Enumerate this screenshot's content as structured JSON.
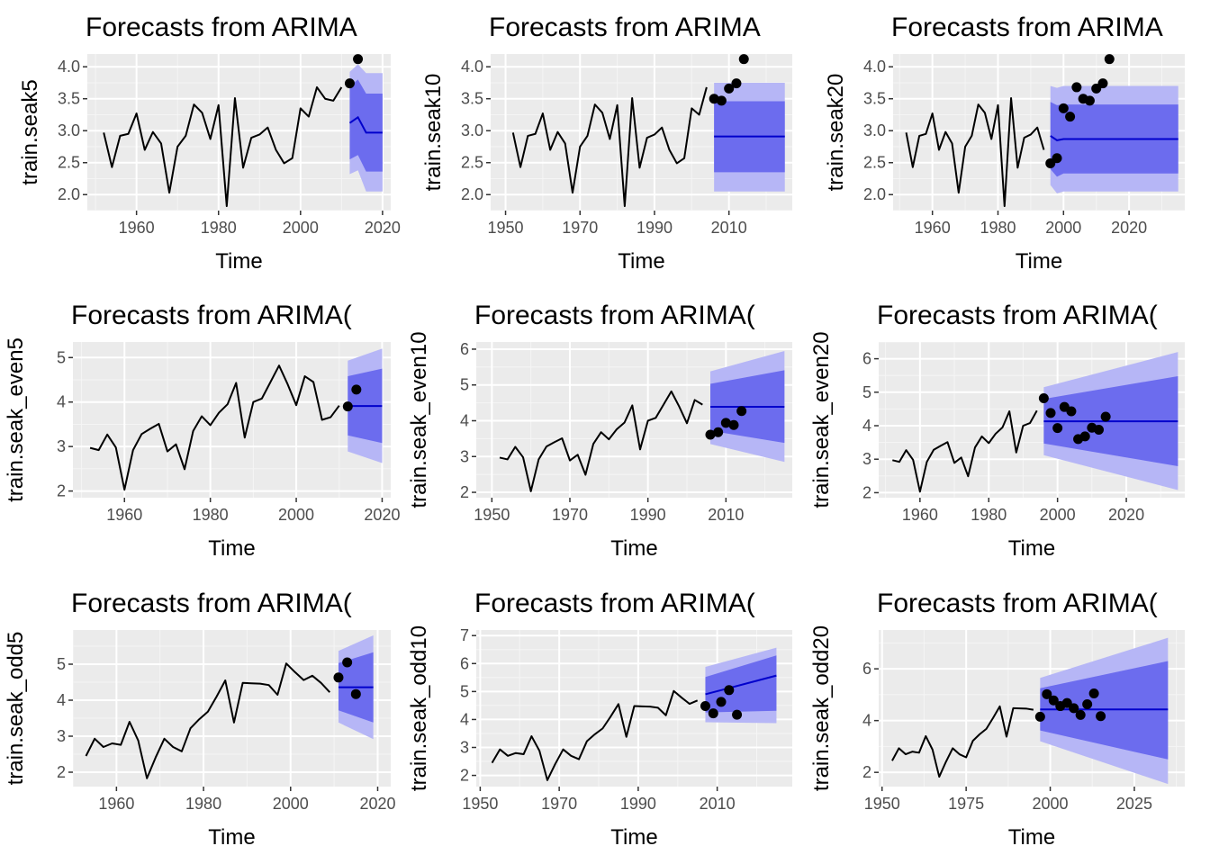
{
  "figure": {
    "panel_bg": "#ebebeb",
    "grid_major": "#ffffff",
    "grid_minor": "#f5f5f5",
    "band80": "#6c6cee",
    "band95": "#b6b6f6",
    "forecast_line": "#0000cc",
    "series_line": "#000000",
    "points": "#000000"
  },
  "chart_data": [
    {
      "type": "line",
      "title": "Forecasts from ARIMA",
      "xlabel": "Time",
      "ylabel": "train.seak5",
      "xlim": [
        1948,
        2022
      ],
      "ylim": [
        1.75,
        4.2
      ],
      "xticks": [
        1960,
        1980,
        2000,
        2020
      ],
      "yticks": [
        2.0,
        2.5,
        3.0,
        3.5,
        4.0
      ],
      "ytick_labels": [
        "2.0",
        "2.5",
        "3.0",
        "3.5",
        "4.0"
      ],
      "series": {
        "x": [
          1952,
          1954,
          1956,
          1958,
          1960,
          1962,
          1964,
          1966,
          1968,
          1970,
          1972,
          1974,
          1976,
          1978,
          1980,
          1982,
          1984,
          1986,
          1988,
          1990,
          1992,
          1994,
          1996,
          1998,
          2000,
          2002,
          2004,
          2006,
          2008,
          2010
        ],
        "y": [
          2.97,
          2.43,
          2.92,
          2.95,
          3.27,
          2.7,
          2.98,
          2.8,
          2.03,
          2.75,
          2.92,
          3.41,
          3.28,
          2.87,
          3.4,
          1.82,
          3.51,
          2.42,
          2.89,
          2.94,
          3.05,
          2.7,
          2.49,
          2.57,
          3.35,
          3.22,
          3.68,
          3.5,
          3.47,
          3.68
        ]
      },
      "forecast": {
        "x": [
          2012,
          2014,
          2016,
          2018,
          2020
        ],
        "mean": [
          3.12,
          3.21,
          2.97,
          2.97,
          2.97
        ],
        "lo80": [
          2.55,
          2.62,
          2.36,
          2.36,
          2.36
        ],
        "hi80": [
          3.69,
          3.8,
          3.58,
          3.58,
          3.58
        ],
        "lo95": [
          2.32,
          2.38,
          2.05,
          2.05,
          2.05
        ],
        "hi95": [
          3.92,
          4.04,
          3.9,
          3.9,
          3.9
        ]
      },
      "actual": {
        "x": [
          2012,
          2014
        ],
        "y": [
          3.74,
          4.12
        ]
      }
    },
    {
      "type": "line",
      "title": "Forecasts from ARIMA",
      "xlabel": "Time",
      "ylabel": "train.seak10",
      "xlim": [
        1946,
        2027
      ],
      "ylim": [
        1.75,
        4.2
      ],
      "xticks": [
        1950,
        1970,
        1990,
        2010
      ],
      "yticks": [
        2.0,
        2.5,
        3.0,
        3.5,
        4.0
      ],
      "ytick_labels": [
        "2.0",
        "2.5",
        "3.0",
        "3.5",
        "4.0"
      ],
      "series": {
        "x": [
          1952,
          1954,
          1956,
          1958,
          1960,
          1962,
          1964,
          1966,
          1968,
          1970,
          1972,
          1974,
          1976,
          1978,
          1980,
          1982,
          1984,
          1986,
          1988,
          1990,
          1992,
          1994,
          1996,
          1998,
          2000,
          2002,
          2004
        ],
        "y": [
          2.97,
          2.43,
          2.92,
          2.95,
          3.27,
          2.7,
          2.98,
          2.8,
          2.03,
          2.75,
          2.92,
          3.41,
          3.28,
          2.87,
          3.4,
          1.82,
          3.51,
          2.42,
          2.89,
          2.94,
          3.05,
          2.7,
          2.49,
          2.57,
          3.35,
          3.25,
          3.68
        ]
      },
      "forecast": {
        "x": [
          2006,
          2025
        ],
        "mean": [
          2.91,
          2.91
        ],
        "lo80": [
          2.35,
          2.35
        ],
        "hi80": [
          3.46,
          3.46
        ],
        "lo95": [
          2.05,
          2.05
        ],
        "hi95": [
          3.75,
          3.75
        ]
      },
      "actual": {
        "x": [
          2006,
          2008,
          2010,
          2012,
          2014
        ],
        "y": [
          3.5,
          3.47,
          3.66,
          3.74,
          4.12
        ]
      }
    },
    {
      "type": "line",
      "title": "Forecasts from ARIMA",
      "xlabel": "Time",
      "ylabel": "train.seak20",
      "xlim": [
        1948,
        2037
      ],
      "ylim": [
        1.75,
        4.2
      ],
      "xticks": [
        1960,
        1980,
        2000,
        2020
      ],
      "yticks": [
        2.0,
        2.5,
        3.0,
        3.5,
        4.0
      ],
      "ytick_labels": [
        "2.0",
        "2.5",
        "3.0",
        "3.5",
        "4.0"
      ],
      "series": {
        "x": [
          1952,
          1954,
          1956,
          1958,
          1960,
          1962,
          1964,
          1966,
          1968,
          1970,
          1972,
          1974,
          1976,
          1978,
          1980,
          1982,
          1984,
          1986,
          1988,
          1990,
          1992,
          1994
        ],
        "y": [
          2.97,
          2.43,
          2.92,
          2.95,
          3.27,
          2.7,
          2.98,
          2.8,
          2.03,
          2.75,
          2.92,
          3.41,
          3.28,
          2.87,
          3.4,
          1.82,
          3.51,
          2.42,
          2.89,
          2.94,
          3.05,
          2.7
        ]
      },
      "forecast": {
        "x": [
          1996,
          1998,
          2000,
          2035
        ],
        "mean": [
          2.92,
          2.85,
          2.87,
          2.87
        ],
        "lo80": [
          2.4,
          2.28,
          2.33,
          2.33
        ],
        "hi80": [
          3.45,
          3.4,
          3.41,
          3.41
        ],
        "lo95": [
          2.15,
          2.02,
          2.05,
          2.05
        ],
        "hi95": [
          3.7,
          3.67,
          3.7,
          3.7
        ]
      },
      "actual": {
        "x": [
          1996,
          1998,
          2000,
          2002,
          2004,
          2006,
          2008,
          2010,
          2012,
          2014
        ],
        "y": [
          2.49,
          2.57,
          3.35,
          3.22,
          3.68,
          3.5,
          3.47,
          3.66,
          3.74,
          4.12
        ]
      }
    },
    {
      "type": "line",
      "title": "Forecasts from ARIMA(",
      "xlabel": "Time",
      "ylabel": "train.seak_even5",
      "xlim": [
        1948,
        2022
      ],
      "ylim": [
        1.85,
        5.35
      ],
      "xticks": [
        1960,
        1980,
        2000,
        2020
      ],
      "yticks": [
        2,
        3,
        4,
        5
      ],
      "ytick_labels": [
        "2",
        "3",
        "4",
        "5"
      ],
      "series": {
        "x": [
          1952,
          1954,
          1956,
          1958,
          1960,
          1962,
          1964,
          1966,
          1968,
          1970,
          1972,
          1974,
          1976,
          1978,
          1980,
          1982,
          1984,
          1986,
          1988,
          1990,
          1992,
          1994,
          1996,
          1998,
          2000,
          2002,
          2004,
          2006,
          2008,
          2010
        ],
        "y": [
          2.97,
          2.92,
          3.27,
          2.98,
          2.03,
          2.92,
          3.28,
          3.4,
          3.51,
          2.89,
          3.05,
          2.49,
          3.35,
          3.68,
          3.48,
          3.76,
          3.95,
          4.43,
          3.2,
          4.0,
          4.08,
          4.45,
          4.82,
          4.4,
          3.93,
          4.58,
          4.45,
          3.6,
          3.66,
          3.92
        ]
      },
      "forecast": {
        "x": [
          2012,
          2020
        ],
        "mean": [
          3.91,
          3.91
        ],
        "lo80": [
          3.25,
          3.08
        ],
        "hi80": [
          4.58,
          4.75
        ],
        "lo95": [
          2.89,
          2.63
        ],
        "hi95": [
          4.93,
          5.2
        ]
      },
      "actual": {
        "x": [
          2012,
          2014
        ],
        "y": [
          3.9,
          4.28
        ]
      }
    },
    {
      "type": "line",
      "title": "Forecasts from ARIMA(",
      "xlabel": "Time",
      "ylabel": "train.seak_even10",
      "xlim": [
        1946,
        2027
      ],
      "ylim": [
        1.85,
        6.2
      ],
      "xticks": [
        1950,
        1970,
        1990,
        2010
      ],
      "yticks": [
        2,
        3,
        4,
        5,
        6
      ],
      "ytick_labels": [
        "2",
        "3",
        "4",
        "5",
        "6"
      ],
      "series": {
        "x": [
          1952,
          1954,
          1956,
          1958,
          1960,
          1962,
          1964,
          1966,
          1968,
          1970,
          1972,
          1974,
          1976,
          1978,
          1980,
          1982,
          1984,
          1986,
          1988,
          1990,
          1992,
          1994,
          1996,
          1998,
          2000,
          2002,
          2004
        ],
        "y": [
          2.97,
          2.92,
          3.27,
          2.98,
          2.03,
          2.92,
          3.28,
          3.4,
          3.51,
          2.89,
          3.05,
          2.49,
          3.35,
          3.68,
          3.48,
          3.76,
          3.95,
          4.43,
          3.2,
          4.0,
          4.08,
          4.45,
          4.82,
          4.4,
          3.93,
          4.58,
          4.45
        ]
      },
      "forecast": {
        "x": [
          2006,
          2025
        ],
        "mean": [
          4.39,
          4.39
        ],
        "lo80": [
          3.72,
          3.38
        ],
        "hi80": [
          5.03,
          5.41
        ],
        "lo95": [
          3.35,
          2.85
        ],
        "hi95": [
          5.38,
          5.95
        ]
      },
      "actual": {
        "x": [
          2006,
          2008,
          2010,
          2012,
          2014
        ],
        "y": [
          3.61,
          3.68,
          3.94,
          3.88,
          4.27
        ]
      }
    },
    {
      "type": "line",
      "title": "Forecasts from ARIMA(",
      "xlabel": "Time",
      "ylabel": "train.seak_even20",
      "xlim": [
        1948,
        2037
      ],
      "ylim": [
        1.85,
        6.5
      ],
      "xticks": [
        1960,
        1980,
        2000,
        2020
      ],
      "yticks": [
        2,
        3,
        4,
        5,
        6
      ],
      "ytick_labels": [
        "2",
        "3",
        "4",
        "5",
        "6"
      ],
      "series": {
        "x": [
          1952,
          1954,
          1956,
          1958,
          1960,
          1962,
          1964,
          1966,
          1968,
          1970,
          1972,
          1974,
          1976,
          1978,
          1980,
          1982,
          1984,
          1986,
          1988,
          1990,
          1992,
          1994
        ],
        "y": [
          2.97,
          2.92,
          3.27,
          2.98,
          2.03,
          2.92,
          3.28,
          3.4,
          3.51,
          2.89,
          3.05,
          2.49,
          3.35,
          3.68,
          3.48,
          3.76,
          3.95,
          4.43,
          3.2,
          4.0,
          4.08,
          4.45
        ]
      },
      "forecast": {
        "x": [
          1996,
          2035
        ],
        "mean": [
          4.13,
          4.13
        ],
        "lo80": [
          3.47,
          2.79
        ],
        "hi80": [
          4.8,
          5.48
        ],
        "lo95": [
          3.12,
          2.08
        ],
        "hi95": [
          5.15,
          6.2
        ]
      },
      "actual": {
        "x": [
          1996,
          1998,
          2000,
          2002,
          2004,
          2006,
          2008,
          2010,
          2012,
          2014
        ],
        "y": [
          4.82,
          4.38,
          3.93,
          4.56,
          4.43,
          3.6,
          3.68,
          3.94,
          3.88,
          4.27
        ]
      }
    },
    {
      "type": "line",
      "title": "Forecasts from ARIMA(",
      "xlabel": "Time",
      "ylabel": "train.seak_odd5",
      "xlim": [
        1950,
        2023
      ],
      "ylim": [
        1.6,
        5.95
      ],
      "xticks": [
        1960,
        1980,
        2000,
        2020
      ],
      "yticks": [
        2,
        3,
        4,
        5
      ],
      "ytick_labels": [
        "2",
        "3",
        "4",
        "5"
      ],
      "series": {
        "x": [
          1953,
          1955,
          1957,
          1959,
          1961,
          1963,
          1965,
          1967,
          1969,
          1971,
          1973,
          1975,
          1977,
          1979,
          1981,
          1983,
          1985,
          1987,
          1989,
          1991,
          1993,
          1995,
          1997,
          1999,
          2001,
          2003,
          2005,
          2007,
          2009
        ],
        "y": [
          2.45,
          2.93,
          2.7,
          2.8,
          2.76,
          3.4,
          2.88,
          1.83,
          2.41,
          2.93,
          2.7,
          2.58,
          3.22,
          3.47,
          3.68,
          4.1,
          4.55,
          3.38,
          4.48,
          4.47,
          4.46,
          4.42,
          4.15,
          5.02,
          4.78,
          4.56,
          4.68,
          4.48,
          4.22
        ]
      },
      "forecast": {
        "x": [
          2011,
          2019
        ],
        "mean": [
          4.36,
          4.36
        ],
        "lo80": [
          3.72,
          3.38
        ],
        "hi80": [
          5.03,
          5.33
        ],
        "lo95": [
          3.38,
          2.92
        ],
        "hi95": [
          5.37,
          5.8
        ]
      },
      "actual": {
        "x": [
          2011,
          2013,
          2015
        ],
        "y": [
          4.63,
          5.05,
          4.17
        ]
      }
    },
    {
      "type": "line",
      "title": "Forecasts from ARIMA(",
      "xlabel": "Time",
      "ylabel": "train.seak_odd10",
      "xlim": [
        1949,
        2029
      ],
      "ylim": [
        1.6,
        7.2
      ],
      "xticks": [
        1950,
        1970,
        1990,
        2010
      ],
      "yticks": [
        2,
        3,
        4,
        5,
        6,
        7
      ],
      "ytick_labels": [
        "2",
        "3",
        "4",
        "5",
        "6",
        "7"
      ],
      "series": {
        "x": [
          1953,
          1955,
          1957,
          1959,
          1961,
          1963,
          1965,
          1967,
          1969,
          1971,
          1973,
          1975,
          1977,
          1979,
          1981,
          1983,
          1985,
          1987,
          1989,
          1991,
          1993,
          1995,
          1997,
          1999,
          2001,
          2003,
          2005
        ],
        "y": [
          2.45,
          2.93,
          2.7,
          2.8,
          2.76,
          3.4,
          2.88,
          1.83,
          2.41,
          2.93,
          2.7,
          2.58,
          3.22,
          3.47,
          3.68,
          4.1,
          4.55,
          3.38,
          4.48,
          4.47,
          4.46,
          4.42,
          4.15,
          5.02,
          4.78,
          4.56,
          4.68
        ]
      },
      "forecast": {
        "x": [
          2007,
          2025
        ],
        "mean": [
          4.9,
          5.57
        ],
        "lo80": [
          4.25,
          4.31
        ],
        "hi80": [
          5.52,
          6.29
        ],
        "lo95": [
          3.9,
          3.87
        ],
        "hi95": [
          5.88,
          6.57
        ]
      },
      "actual": {
        "x": [
          2007,
          2009,
          2011,
          2013,
          2015
        ],
        "y": [
          4.48,
          4.22,
          4.63,
          5.05,
          4.17
        ]
      }
    },
    {
      "type": "line",
      "title": "Forecasts from ARIMA(",
      "xlabel": "Time",
      "ylabel": "train.seak_odd20",
      "xlim": [
        1949,
        2040
      ],
      "ylim": [
        1.45,
        7.5
      ],
      "xticks": [
        1950,
        1975,
        2000,
        2025
      ],
      "yticks": [
        2,
        4,
        6
      ],
      "ytick_labels": [
        "2",
        "4",
        "6"
      ],
      "series": {
        "x": [
          1953,
          1955,
          1957,
          1959,
          1961,
          1963,
          1965,
          1967,
          1969,
          1971,
          1973,
          1975,
          1977,
          1979,
          1981,
          1983,
          1985,
          1987,
          1989,
          1991,
          1993,
          1995
        ],
        "y": [
          2.45,
          2.93,
          2.7,
          2.8,
          2.76,
          3.4,
          2.88,
          1.83,
          2.41,
          2.93,
          2.7,
          2.58,
          3.22,
          3.47,
          3.68,
          4.1,
          4.55,
          3.38,
          4.48,
          4.47,
          4.46,
          4.42
        ]
      },
      "forecast": {
        "x": [
          1997,
          2035
        ],
        "mean": [
          4.43,
          4.43
        ],
        "lo80": [
          3.62,
          2.5
        ],
        "hi80": [
          5.25,
          6.3
        ],
        "lo95": [
          3.2,
          1.55
        ],
        "hi95": [
          5.65,
          7.2
        ]
      },
      "actual": {
        "x": [
          1997,
          1999,
          2001,
          2003,
          2005,
          2007,
          2009,
          2011,
          2013,
          2015
        ],
        "y": [
          4.15,
          5.02,
          4.78,
          4.56,
          4.68,
          4.48,
          4.22,
          4.63,
          5.05,
          4.17
        ]
      }
    }
  ]
}
